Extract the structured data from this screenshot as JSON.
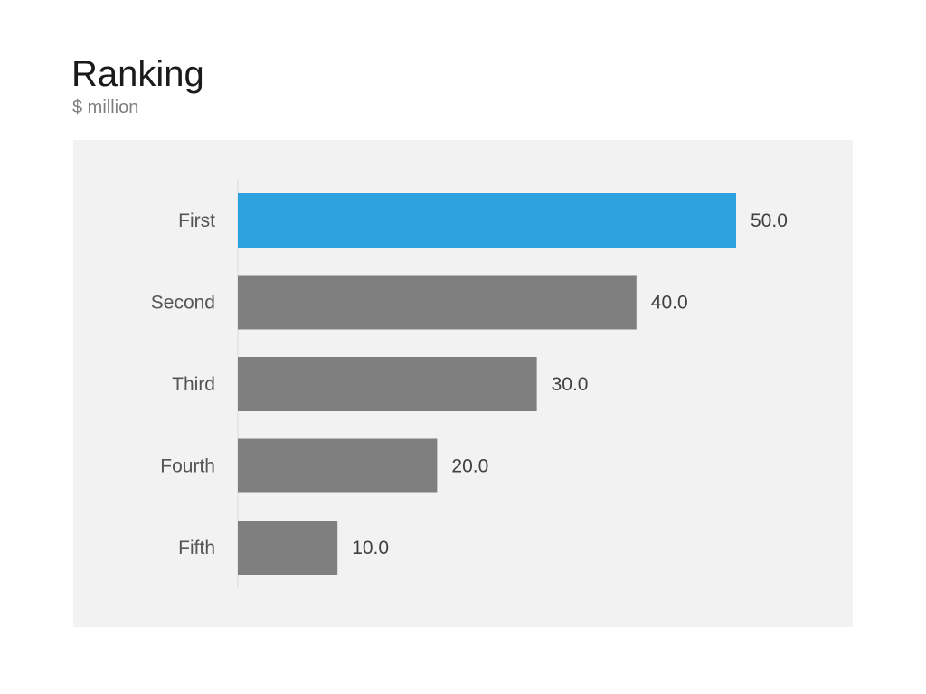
{
  "header": {
    "title": "Ranking",
    "subtitle": "$ million"
  },
  "colors": {
    "highlight": "#2ca3df",
    "default": "#7f7f7f",
    "panel": "#f2f2f2",
    "axis": "#d9d9d9"
  },
  "chart_data": {
    "type": "bar",
    "orientation": "horizontal",
    "title": "Ranking",
    "subtitle": "$ million",
    "categories": [
      "First",
      "Second",
      "Third",
      "Fourth",
      "Fifth"
    ],
    "values": [
      50.0,
      40.0,
      30.0,
      20.0,
      10.0
    ],
    "value_labels": [
      "50.0",
      "40.0",
      "30.0",
      "20.0",
      "10.0"
    ],
    "highlight_index": 0,
    "xlim": [
      0,
      50
    ],
    "xlabel": "",
    "ylabel": "",
    "grid": false,
    "legend": "none"
  }
}
